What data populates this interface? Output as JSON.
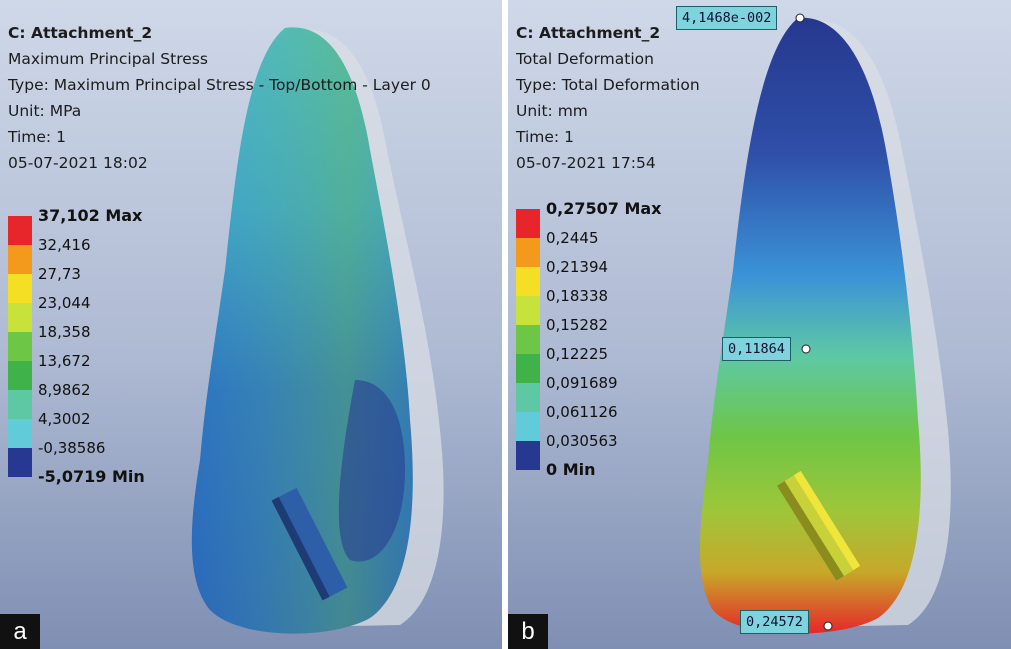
{
  "panel_a": {
    "letter": "a",
    "info": {
      "title": "C: Attachment_2",
      "line1": "Maximum Principal Stress",
      "line2": "Type: Maximum Principal Stress - Top/Bottom - Layer 0",
      "line3": "Unit: MPa",
      "line4": "Time: 1",
      "line5": "05-07-2021 18:02"
    },
    "legend": [
      {
        "label": "37,102 Max",
        "color": "#e6262a",
        "bold": true
      },
      {
        "label": "32,416",
        "color": "#f39a1c",
        "bold": false
      },
      {
        "label": "27,73",
        "color": "#f5df25",
        "bold": false
      },
      {
        "label": "23,044",
        "color": "#c7e23a",
        "bold": false
      },
      {
        "label": "18,358",
        "color": "#6ec646",
        "bold": false
      },
      {
        "label": "13,672",
        "color": "#3fb24a",
        "bold": false
      },
      {
        "label": "8,9862",
        "color": "#5ec8a4",
        "bold": false
      },
      {
        "label": "4,3002",
        "color": "#62cbd9",
        "bold": false
      },
      {
        "label": "-0,38586",
        "color": "#3b93d6",
        "bold": false
      },
      {
        "label": "-5,0719 Min",
        "color": "#26388f",
        "bold": true
      }
    ]
  },
  "panel_b": {
    "letter": "b",
    "info": {
      "title": "C: Attachment_2",
      "line1": "Total Deformation",
      "line2": "Type: Total Deformation",
      "line3": "Unit: mm",
      "line4": "Time: 1",
      "line5": "05-07-2021 17:54"
    },
    "legend": [
      {
        "label": "0,27507 Max",
        "color": "#e6262a",
        "bold": true
      },
      {
        "label": "0,2445",
        "color": "#f39a1c",
        "bold": false
      },
      {
        "label": "0,21394",
        "color": "#f5df25",
        "bold": false
      },
      {
        "label": "0,18338",
        "color": "#c7e23a",
        "bold": false
      },
      {
        "label": "0,15282",
        "color": "#6ec646",
        "bold": false
      },
      {
        "label": "0,12225",
        "color": "#3fb24a",
        "bold": false
      },
      {
        "label": "0,091689",
        "color": "#5ec8a4",
        "bold": false
      },
      {
        "label": "0,061126",
        "color": "#62cbd9",
        "bold": false
      },
      {
        "label": "0,030563",
        "color": "#3b93d6",
        "bold": false
      },
      {
        "label": "0 Min",
        "color": "#26388f",
        "bold": true
      }
    ],
    "probes": {
      "top": "4,1468e-002",
      "middle": "0,11864",
      "bottom": "0,24572"
    }
  }
}
